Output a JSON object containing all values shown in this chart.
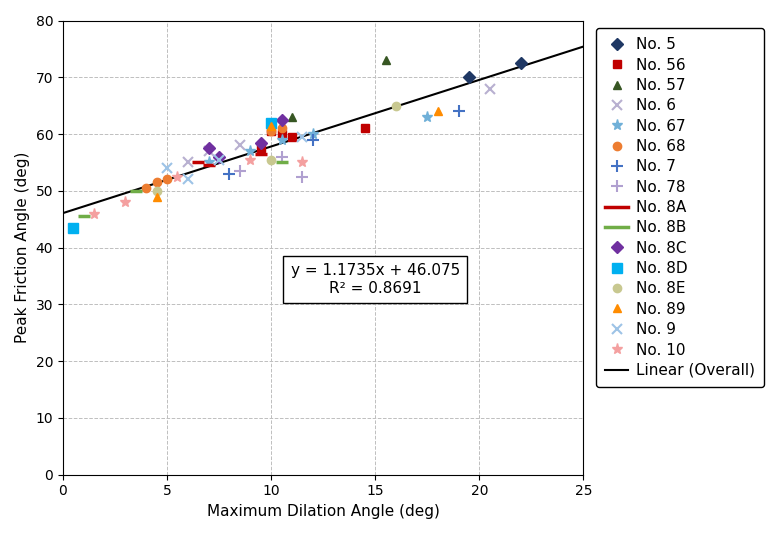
{
  "title": "",
  "xlabel": "Maximum Dilation Angle (deg)",
  "ylabel": "Peak Friction Angle (deg)",
  "xlim": [
    0,
    25
  ],
  "ylim": [
    0,
    80
  ],
  "xticks": [
    0,
    5,
    10,
    15,
    20,
    25
  ],
  "yticks": [
    0,
    10,
    20,
    30,
    40,
    50,
    60,
    70,
    80
  ],
  "equation": "y = 1.1735x + 46.075",
  "r_squared": "R² = 0.8691",
  "slope": 1.1735,
  "intercept": 46.075,
  "series": [
    {
      "label": "No. 5",
      "color": "#1F3864",
      "marker": "D",
      "markersize": 6,
      "data": [
        [
          19.5,
          70.0
        ],
        [
          22.0,
          72.5
        ]
      ]
    },
    {
      "label": "No. 56",
      "color": "#C00000",
      "marker": "s",
      "markersize": 6,
      "data": [
        [
          9.5,
          57.5
        ],
        [
          10.0,
          60.5
        ],
        [
          10.5,
          60.0
        ],
        [
          11.0,
          59.5
        ],
        [
          14.5,
          61.0
        ]
      ]
    },
    {
      "label": "No. 57",
      "color": "#375623",
      "marker": "^",
      "markersize": 6,
      "data": [
        [
          10.0,
          62.0
        ],
        [
          11.0,
          63.0
        ],
        [
          15.5,
          73.0
        ]
      ]
    },
    {
      "label": "No. 6",
      "color": "#B8B0D0",
      "marker": "x",
      "markersize": 7,
      "linewidth": 1.5,
      "data": [
        [
          6.0,
          55.0
        ],
        [
          7.0,
          57.0
        ],
        [
          8.5,
          58.0
        ],
        [
          20.5,
          68.0
        ]
      ]
    },
    {
      "label": "No. 67",
      "color": "#70B0D8",
      "marker": "*",
      "markersize": 8,
      "data": [
        [
          7.0,
          55.0
        ],
        [
          9.0,
          57.0
        ],
        [
          10.5,
          59.0
        ],
        [
          12.0,
          60.0
        ],
        [
          17.5,
          63.0
        ]
      ]
    },
    {
      "label": "No. 68",
      "color": "#ED7D31",
      "marker": "o",
      "markersize": 6,
      "data": [
        [
          4.0,
          50.5
        ],
        [
          4.5,
          51.5
        ],
        [
          5.0,
          52.0
        ],
        [
          10.0,
          60.5
        ],
        [
          10.5,
          61.0
        ]
      ]
    },
    {
      "label": "No. 7",
      "color": "#4472C4",
      "marker": "+",
      "markersize": 8,
      "linewidth": 1.5,
      "data": [
        [
          8.0,
          53.0
        ],
        [
          12.0,
          59.0
        ],
        [
          19.0,
          64.0
        ]
      ]
    },
    {
      "label": "No. 78",
      "color": "#B0A0D0",
      "marker": "+",
      "markersize": 8,
      "linewidth": 1.5,
      "data": [
        [
          8.5,
          53.5
        ],
        [
          10.5,
          56.0
        ],
        [
          11.5,
          52.5
        ]
      ]
    },
    {
      "label": "No. 8A",
      "color": "#C00000",
      "marker": "_",
      "markersize": 9,
      "linewidth": 2,
      "data": [
        [
          6.5,
          55.0
        ],
        [
          7.0,
          54.5
        ],
        [
          9.5,
          56.5
        ]
      ]
    },
    {
      "label": "No. 8B",
      "color": "#70AD47",
      "marker": "_",
      "markersize": 9,
      "linewidth": 2,
      "data": [
        [
          1.0,
          45.5
        ],
        [
          3.5,
          50.0
        ],
        [
          10.5,
          55.0
        ]
      ]
    },
    {
      "label": "No. 8C",
      "color": "#7030A0",
      "marker": "D",
      "markersize": 6,
      "data": [
        [
          7.0,
          57.5
        ],
        [
          7.5,
          56.0
        ],
        [
          9.5,
          58.5
        ],
        [
          10.5,
          62.5
        ]
      ]
    },
    {
      "label": "No. 8D",
      "color": "#00B0F0",
      "marker": "s",
      "markersize": 7,
      "data": [
        [
          0.5,
          43.5
        ],
        [
          10.0,
          62.0
        ]
      ]
    },
    {
      "label": "No. 8E",
      "color": "#C8C890",
      "marker": "o",
      "markersize": 6,
      "data": [
        [
          4.5,
          50.0
        ],
        [
          10.0,
          55.5
        ],
        [
          16.0,
          65.0
        ]
      ]
    },
    {
      "label": "No. 89",
      "color": "#FF8C00",
      "marker": "^",
      "markersize": 6,
      "data": [
        [
          4.5,
          49.0
        ],
        [
          10.0,
          61.5
        ],
        [
          18.0,
          64.0
        ]
      ]
    },
    {
      "label": "No. 9",
      "color": "#9DC3E6",
      "marker": "x",
      "markersize": 7,
      "linewidth": 1.5,
      "data": [
        [
          5.0,
          54.0
        ],
        [
          6.0,
          52.0
        ],
        [
          7.5,
          55.5
        ],
        [
          11.5,
          59.5
        ]
      ]
    },
    {
      "label": "No. 10",
      "color": "#F4A0A0",
      "marker": "*",
      "markersize": 8,
      "data": [
        [
          1.5,
          46.0
        ],
        [
          3.0,
          48.0
        ],
        [
          5.5,
          52.5
        ],
        [
          9.0,
          55.5
        ],
        [
          11.5,
          55.0
        ]
      ]
    }
  ],
  "background_color": "#FFFFFF",
  "grid_color": "#BFBFBF",
  "legend_fontsize": 11,
  "axis_label_fontsize": 11,
  "tick_fontsize": 10
}
